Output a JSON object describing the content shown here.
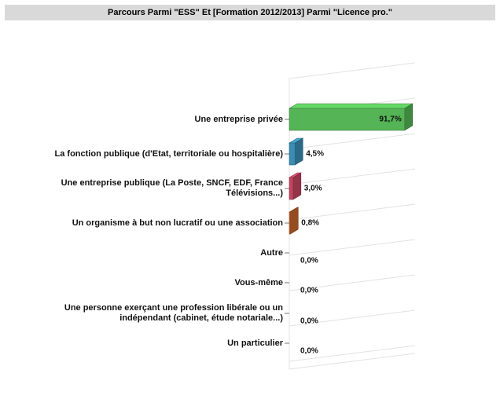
{
  "chart_data": {
    "type": "bar3d_horizontal",
    "title": "Parcours Parmi \"ESS\" Et [Formation 2012/2013] Parmi \"Licence pro.\"",
    "categories": [
      "Une entreprise privée",
      "La fonction publique (d'Etat, territoriale ou hospitalière)",
      "Une entreprise publique (La Poste, SNCF, EDF, France Télévisions...)",
      "Un organisme à but non lucratif ou une association",
      "Autre",
      "Vous-même",
      "Une personne exerçant une profession libérale ou un indépendant (cabinet, étude notariale...)",
      "Un particulier"
    ],
    "values": [
      91.7,
      4.5,
      3.0,
      0.8,
      0,
      0,
      0,
      0
    ],
    "value_labels": [
      "91,7%",
      "4,5%",
      "3,0%",
      "0,8%",
      "0,0%",
      "0,0%",
      "0,0%",
      "0,0%"
    ],
    "colors": [
      "#55b455",
      "#3b8cb2",
      "#c44560",
      "#c8652c"
    ]
  }
}
